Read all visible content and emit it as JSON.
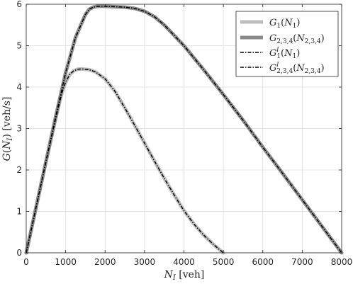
{
  "chart_data": {
    "type": "line",
    "xlabel": "N_I [veh]",
    "ylabel": "G(N_I) [veh/s]",
    "xlim": [
      0,
      8000
    ],
    "ylim": [
      0,
      6
    ],
    "xticks": [
      0,
      1000,
      2000,
      3000,
      4000,
      5000,
      6000,
      7000,
      8000
    ],
    "yticks": [
      0,
      1,
      2,
      3,
      4,
      5,
      6
    ],
    "grid": true,
    "legend_position": "top-right",
    "series": [
      {
        "name": "G_1(N_1)",
        "color": "#bdbdbd",
        "style": "solid-thick",
        "x": [
          0,
          250,
          500,
          750,
          900,
          1000,
          1100,
          1200,
          1300,
          1400,
          1500,
          1600,
          1750,
          2000,
          2250,
          2500,
          2750,
          3000,
          3250,
          3500,
          3750,
          4000,
          4250,
          4500,
          4750,
          5000
        ],
        "y": [
          0,
          1.1,
          2.2,
          3.25,
          3.85,
          4.12,
          4.3,
          4.39,
          4.43,
          4.44,
          4.43,
          4.42,
          4.37,
          4.2,
          3.9,
          3.5,
          3.08,
          2.65,
          2.22,
          1.8,
          1.4,
          1.02,
          0.7,
          0.43,
          0.2,
          0
        ]
      },
      {
        "name": "G_{2,3,4}(N_{2,3,4})",
        "color": "#8a8a8a",
        "style": "solid-thick",
        "x": [
          0,
          250,
          500,
          750,
          1000,
          1250,
          1500,
          1600,
          1700,
          1800,
          2000,
          2250,
          2500,
          2750,
          3000,
          3250,
          3500,
          4000,
          4500,
          5000,
          5500,
          6000,
          6500,
          7000,
          7500,
          8000
        ],
        "y": [
          0,
          1.1,
          2.2,
          3.3,
          4.35,
          5.2,
          5.75,
          5.88,
          5.93,
          5.95,
          5.95,
          5.94,
          5.93,
          5.9,
          5.83,
          5.7,
          5.5,
          5.0,
          4.42,
          3.82,
          3.2,
          2.55,
          1.92,
          1.28,
          0.64,
          0
        ]
      },
      {
        "name": "G_1^l(N_1)",
        "color": "#000000",
        "style": "dash-dot",
        "x": [
          0,
          250,
          500,
          750,
          900,
          1000,
          1100,
          1200,
          1300,
          1400,
          1500,
          1600,
          1750,
          2000,
          2250,
          2500,
          2750,
          3000,
          3250,
          3500,
          3750,
          4000,
          4250,
          4500,
          4750,
          5000
        ],
        "y": [
          0,
          1.1,
          2.2,
          3.25,
          3.85,
          4.12,
          4.3,
          4.39,
          4.43,
          4.44,
          4.43,
          4.42,
          4.37,
          4.2,
          3.9,
          3.5,
          3.08,
          2.65,
          2.22,
          1.8,
          1.4,
          1.02,
          0.7,
          0.43,
          0.2,
          0
        ]
      },
      {
        "name": "G_{2,3,4}^l(N_{2,3,4})",
        "color": "#000000",
        "style": "dash-dot",
        "x": [
          0,
          250,
          500,
          750,
          1000,
          1250,
          1500,
          1600,
          1700,
          1800,
          2000,
          2250,
          2500,
          2750,
          3000,
          3250,
          3500,
          4000,
          4500,
          5000,
          5500,
          6000,
          6500,
          7000,
          7500,
          8000
        ],
        "y": [
          0,
          1.1,
          2.2,
          3.3,
          4.35,
          5.2,
          5.75,
          5.88,
          5.93,
          5.95,
          5.95,
          5.94,
          5.93,
          5.9,
          5.83,
          5.7,
          5.5,
          5.0,
          4.42,
          3.82,
          3.2,
          2.55,
          1.92,
          1.28,
          0.64,
          0
        ]
      }
    ]
  }
}
